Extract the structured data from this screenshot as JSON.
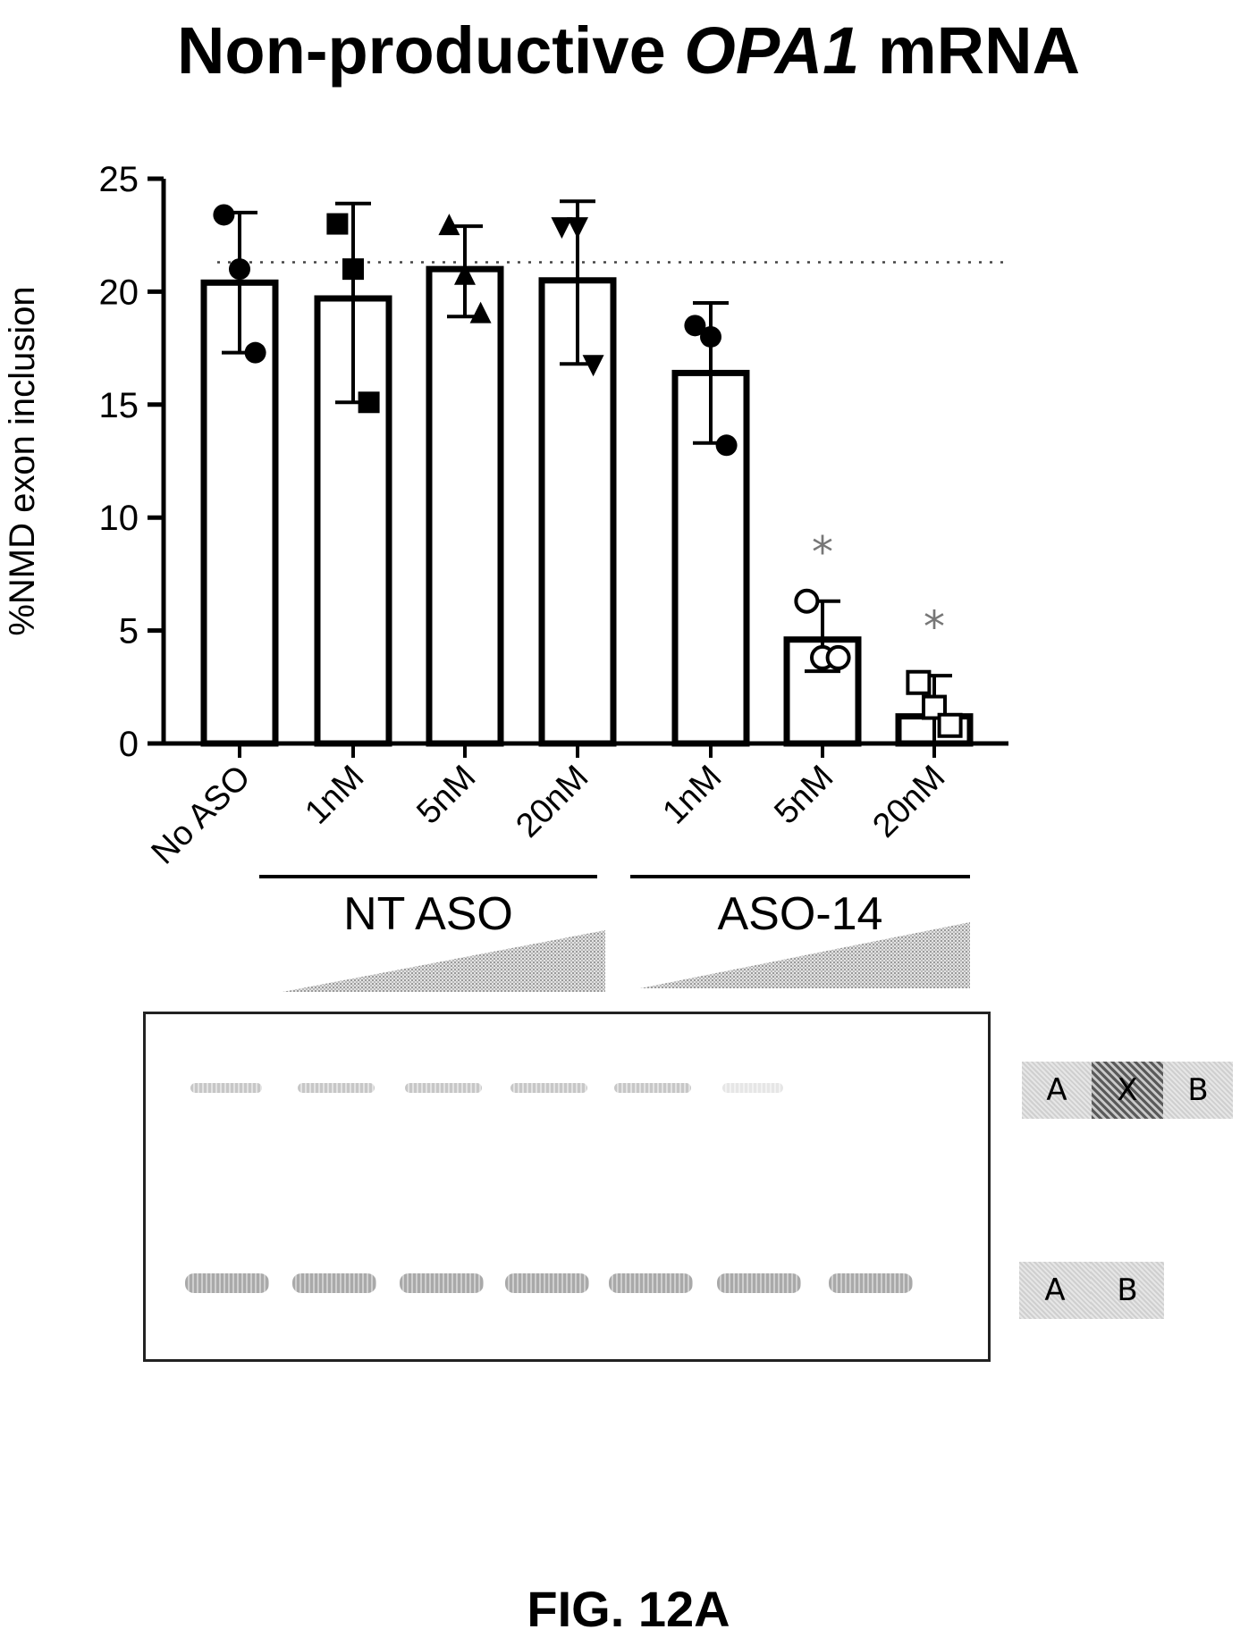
{
  "title": {
    "prefix": "Non-productive ",
    "gene": "OPA1",
    "suffix": " mRNA"
  },
  "figure_label": "FIG. 12A",
  "chart_data": {
    "type": "bar",
    "categories": [
      "No ASO",
      "1nM",
      "5nM",
      "20nM",
      "1nM",
      "5nM",
      "20nM"
    ],
    "groups": [
      {
        "label": "NT ASO",
        "category_indices": [
          1,
          2,
          3
        ]
      },
      {
        "label": "ASO-14",
        "category_indices": [
          4,
          5,
          6
        ]
      }
    ],
    "values": [
      20.4,
      19.7,
      21.0,
      20.5,
      16.4,
      4.6,
      1.2
    ],
    "error_bars": [
      [
        17.3,
        23.5
      ],
      [
        15.1,
        23.9
      ],
      [
        18.9,
        22.9
      ],
      [
        16.8,
        24.0
      ],
      [
        13.3,
        19.5
      ],
      [
        3.2,
        6.3
      ],
      [
        0.0,
        3.0
      ]
    ],
    "points": [
      [
        23.4,
        21.0,
        17.3
      ],
      [
        23.0,
        21.0,
        15.1
      ],
      [
        22.9,
        20.7,
        19.0
      ],
      [
        22.9,
        22.9,
        16.8
      ],
      [
        18.5,
        18.0,
        13.2
      ],
      [
        6.3,
        3.8,
        3.8
      ],
      [
        2.7,
        1.6,
        0.8
      ]
    ],
    "markers": [
      "circle",
      "square",
      "triangle-up",
      "triangle-down",
      "circle",
      "circle-open",
      "square-open"
    ],
    "significance": [
      null,
      null,
      null,
      null,
      null,
      "*",
      "*"
    ],
    "reference_line": 21.3,
    "ylabel": "%NMD exon inclusion",
    "xlabel": "",
    "ylim": [
      0,
      25
    ],
    "yticks": [
      0,
      5,
      10,
      15,
      20,
      25
    ]
  },
  "gel": {
    "lanes": 7,
    "isoforms": {
      "top": {
        "exons": [
          "A",
          "X",
          "B"
        ],
        "band_intensity": [
          1,
          1,
          1,
          1,
          1,
          0.45,
          0
        ]
      },
      "bottom": {
        "exons": [
          "A",
          "B"
        ],
        "band_intensity": [
          1,
          1,
          1,
          1,
          1,
          1,
          1
        ]
      }
    }
  }
}
